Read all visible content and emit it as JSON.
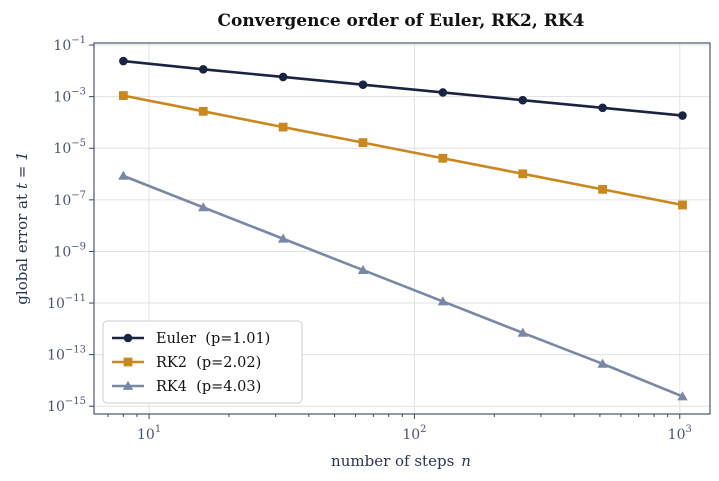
{
  "colors": {
    "euler": "#1a2340",
    "rk2": "#c8881f",
    "rk4": "#7a88a6"
  },
  "chart_data": {
    "type": "line",
    "title": "Convergence order of Euler, RK2, RK4",
    "xlabel_text": "number of steps",
    "xlabel_var": "n",
    "ylabel_text": "global error at",
    "ylabel_math": "t = 1",
    "xscale": "log",
    "yscale": "log",
    "xlim": [
      6.2,
      1300
    ],
    "ylim": [
      5e-16,
      0.12
    ],
    "xticks": [
      {
        "value": 10,
        "base": "10",
        "exp": "1"
      },
      {
        "value": 100,
        "base": "10",
        "exp": "2"
      },
      {
        "value": 1000,
        "base": "10",
        "exp": "3"
      }
    ],
    "yticks": [
      {
        "value": 0.1,
        "base": "10",
        "exp": "−1"
      },
      {
        "value": 0.001,
        "base": "10",
        "exp": "−3"
      },
      {
        "value": 1e-05,
        "base": "10",
        "exp": "−5"
      },
      {
        "value": 1e-07,
        "base": "10",
        "exp": "−7"
      },
      {
        "value": 1e-09,
        "base": "10",
        "exp": "−9"
      },
      {
        "value": 1e-11,
        "base": "10",
        "exp": "−11"
      },
      {
        "value": 1e-13,
        "base": "10",
        "exp": "−13"
      },
      {
        "value": 1e-15,
        "base": "10",
        "exp": "−15"
      }
    ],
    "grid": true,
    "legend_position": "bottom-left",
    "x": [
      8,
      16,
      32,
      64,
      128,
      256,
      512,
      1024
    ],
    "series": [
      {
        "name": "Euler  (p=1.01)",
        "key": "euler",
        "marker": "circle",
        "values": [
          0.024,
          0.0115,
          0.0058,
          0.0029,
          0.00145,
          0.00073,
          0.00037,
          0.000185
        ]
      },
      {
        "name": "RK2  (p=2.02)",
        "key": "rk2",
        "marker": "square",
        "values": [
          0.0011,
          0.00027,
          6.6e-05,
          1.65e-05,
          4.1e-06,
          1.02e-06,
          2.55e-07,
          6.3e-08
        ]
      },
      {
        "name": "RK4  (p=4.03)",
        "key": "rk4",
        "marker": "triangle",
        "values": [
          8.5e-07,
          5.1e-08,
          3.1e-09,
          1.9e-10,
          1.15e-11,
          7e-13,
          4.4e-14,
          2.4e-15
        ]
      }
    ]
  }
}
